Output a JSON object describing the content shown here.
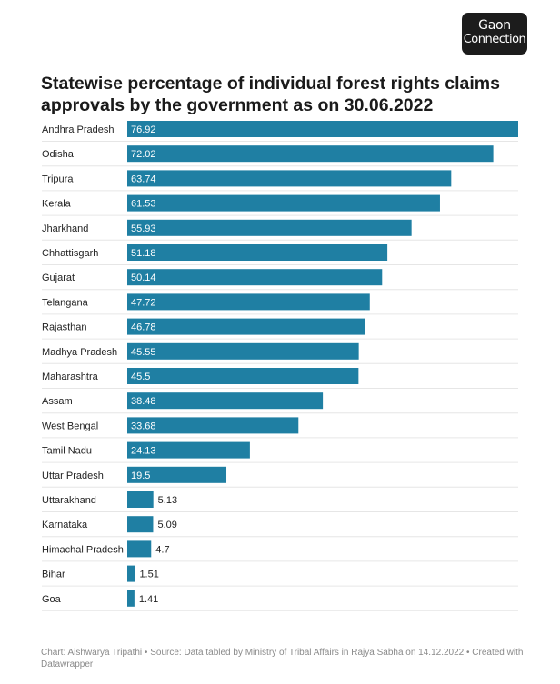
{
  "logo": {
    "line1": "Gaon",
    "line2": "Connection"
  },
  "chart_data": {
    "type": "bar",
    "orientation": "horizontal",
    "title": "Statewise percentage of individual forest rights claims approvals by the government as on 30.06.2022",
    "categories": [
      "Andhra Pradesh",
      "Odisha",
      "Tripura",
      "Kerala",
      "Jharkhand",
      "Chhattisgarh",
      "Gujarat",
      "Telangana",
      "Rajasthan",
      "Madhya Pradesh",
      "Maharashtra",
      "Assam",
      "West Bengal",
      "Tamil Nadu",
      "Uttar Pradesh",
      "Uttarakhand",
      "Karnataka",
      "Himachal Pradesh",
      "Bihar",
      "Goa"
    ],
    "values": [
      76.92,
      72.02,
      63.74,
      61.53,
      55.93,
      51.18,
      50.14,
      47.72,
      46.78,
      45.55,
      45.5,
      38.48,
      33.68,
      24.13,
      19.5,
      5.13,
      5.09,
      4.7,
      1.51,
      1.41
    ],
    "value_labels": [
      "76.92",
      "72.02",
      "63.74",
      "61.53",
      "55.93",
      "51.18",
      "50.14",
      "47.72",
      "46.78",
      "45.55",
      "45.5",
      "38.48",
      "33.68",
      "24.13",
      "19.5",
      "5.13",
      "5.09",
      "4.7",
      "1.51",
      "1.41"
    ],
    "xlim": [
      0,
      76.92
    ],
    "bar_color": "#1f7fa3",
    "grid": false,
    "legend": "none"
  },
  "footer": {
    "text": "Chart: Aishwarya Tripathi • Source: Data tabled by Ministry of Tribal Affairs in Rajya Sabha on 14.12.2022 • Created with Datawrapper"
  }
}
